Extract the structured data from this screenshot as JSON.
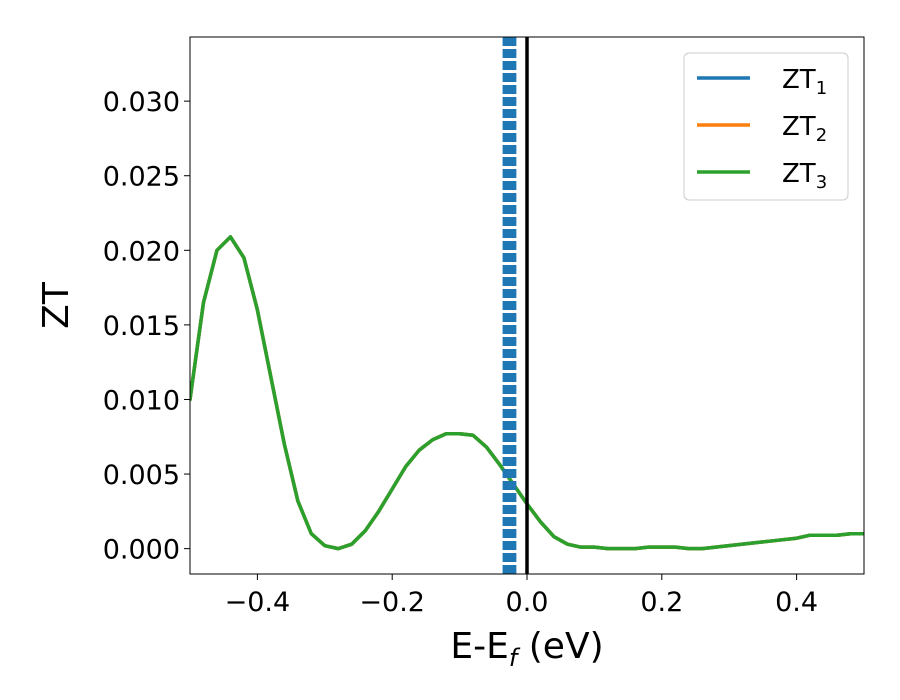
{
  "chart_data": {
    "type": "line",
    "xlabel_parts": {
      "main": "E-E",
      "sub": "f",
      "tail": " (eV)"
    },
    "ylabel": "ZT",
    "xlim": [
      -0.5,
      0.5
    ],
    "ylim": [
      -0.0017,
      0.0343
    ],
    "x_ticks": [
      -0.4,
      -0.2,
      0.0,
      0.2,
      0.4
    ],
    "x_tick_labels": [
      "−0.4",
      "−0.2",
      "0.0",
      "0.2",
      "0.4"
    ],
    "y_ticks": [
      0.0,
      0.005,
      0.01,
      0.015,
      0.02,
      0.025,
      0.03
    ],
    "y_tick_labels": [
      "0.000",
      "0.005",
      "0.010",
      "0.015",
      "0.020",
      "0.025",
      "0.030"
    ],
    "grid": false,
    "legend_position": "top-right",
    "x": [
      -0.5,
      -0.48,
      -0.46,
      -0.44,
      -0.42,
      -0.4,
      -0.38,
      -0.36,
      -0.34,
      -0.32,
      -0.3,
      -0.28,
      -0.26,
      -0.24,
      -0.22,
      -0.2,
      -0.18,
      -0.16,
      -0.14,
      -0.12,
      -0.1,
      -0.08,
      -0.06,
      -0.04,
      -0.02,
      0.0,
      0.02,
      0.04,
      0.06,
      0.08,
      0.1,
      0.12,
      0.14,
      0.16,
      0.18,
      0.2,
      0.22,
      0.24,
      0.26,
      0.28,
      0.3,
      0.32,
      0.34,
      0.36,
      0.38,
      0.4,
      0.42,
      0.44,
      0.46,
      0.48,
      0.5
    ],
    "series": [
      {
        "name_main": "ZT",
        "name_sub": "1",
        "color": "#1f77b4",
        "values": [
          0.01,
          0.0165,
          0.02,
          0.0209,
          0.0195,
          0.016,
          0.0115,
          0.007,
          0.0032,
          0.001,
          0.0002,
          0.0,
          0.0003,
          0.0012,
          0.0025,
          0.004,
          0.0055,
          0.0066,
          0.0073,
          0.0077,
          0.0077,
          0.0076,
          0.0068,
          0.0056,
          0.0043,
          0.003,
          0.0018,
          0.0008,
          0.0003,
          0.0001,
          0.0001,
          0.0,
          0.0,
          0.0,
          0.0001,
          0.0001,
          0.0001,
          0.0,
          0.0,
          0.0001,
          0.0002,
          0.0003,
          0.0004,
          0.0005,
          0.0006,
          0.0007,
          0.0009,
          0.0009,
          0.0009,
          0.001,
          0.001
        ]
      },
      {
        "name_main": "ZT",
        "name_sub": "2",
        "color": "#ff7f0e",
        "values": [
          0.01,
          0.0165,
          0.02,
          0.0209,
          0.0195,
          0.016,
          0.0115,
          0.007,
          0.0032,
          0.001,
          0.0002,
          0.0,
          0.0003,
          0.0012,
          0.0025,
          0.004,
          0.0055,
          0.0066,
          0.0073,
          0.0077,
          0.0077,
          0.0076,
          0.0068,
          0.0056,
          0.0043,
          0.003,
          0.0018,
          0.0008,
          0.0003,
          0.0001,
          0.0001,
          0.0,
          0.0,
          0.0,
          0.0001,
          0.0001,
          0.0001,
          0.0,
          0.0,
          0.0001,
          0.0002,
          0.0003,
          0.0004,
          0.0005,
          0.0006,
          0.0007,
          0.0009,
          0.0009,
          0.0009,
          0.001,
          0.001
        ]
      },
      {
        "name_main": "ZT",
        "name_sub": "3",
        "color": "#2ca02c",
        "values": [
          0.01,
          0.0165,
          0.02,
          0.0209,
          0.0195,
          0.016,
          0.0115,
          0.007,
          0.0032,
          0.001,
          0.0002,
          0.0,
          0.0003,
          0.0012,
          0.0025,
          0.004,
          0.0055,
          0.0066,
          0.0073,
          0.0077,
          0.0077,
          0.0076,
          0.0068,
          0.0056,
          0.0043,
          0.003,
          0.0018,
          0.0008,
          0.0003,
          0.0001,
          0.0001,
          0.0,
          0.0,
          0.0,
          0.0001,
          0.0001,
          0.0001,
          0.0,
          0.0,
          0.0001,
          0.0002,
          0.0003,
          0.0004,
          0.0005,
          0.0006,
          0.0007,
          0.0009,
          0.0009,
          0.0009,
          0.001,
          0.001
        ]
      }
    ],
    "vertical_lines": [
      {
        "x": 0.0,
        "style": "solid",
        "color": "#000000"
      },
      {
        "x": -0.034,
        "style": "dashed",
        "color": "#1f77b4"
      },
      {
        "x": -0.03,
        "style": "dashed",
        "color": "#1f77b4"
      },
      {
        "x": -0.026,
        "style": "dashed",
        "color": "#1f77b4"
      },
      {
        "x": -0.022,
        "style": "dashed",
        "color": "#1f77b4"
      },
      {
        "x": -0.018,
        "style": "dashed",
        "color": "#1f77b4"
      }
    ]
  }
}
